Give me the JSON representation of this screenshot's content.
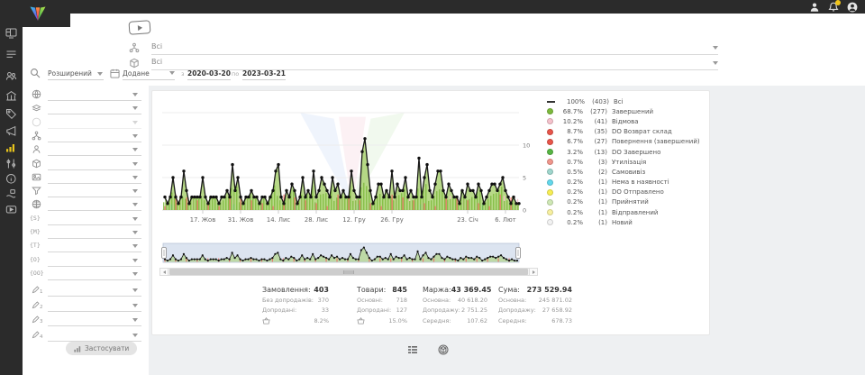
{
  "topbar": {
    "icons": [
      {
        "name": "user-icon"
      },
      {
        "name": "bell-icon",
        "badge": true
      },
      {
        "name": "avatar-icon"
      }
    ]
  },
  "sidebar": {
    "items": [
      {
        "icon": "dashboard-icon"
      },
      {
        "icon": "list-icon"
      },
      {
        "icon": "users-icon"
      },
      {
        "icon": "bank-icon"
      },
      {
        "icon": "tag-icon"
      },
      {
        "icon": "megaphone-icon"
      },
      {
        "icon": "bar-chart-icon",
        "active": true
      },
      {
        "icon": "sliders-icon"
      },
      {
        "icon": "info-icon"
      },
      {
        "icon": "hand-box-icon"
      },
      {
        "icon": "video-icon"
      }
    ]
  },
  "header": {
    "filter_rows": [
      {
        "icon": "sitemap-icon",
        "value": "Всі"
      },
      {
        "icon": "cube-icon",
        "value": "Всі"
      }
    ],
    "search_mode": "Розширений",
    "date_field": "Додане",
    "from_label": "з",
    "date_from": "2020-03-20",
    "to_label": "по",
    "date_to": "2023-03-21"
  },
  "filter_panel": {
    "rows": [
      {
        "icon": "globe-icon"
      },
      {
        "icon": "layers-icon"
      },
      {
        "icon": "status-circle-icon",
        "dim": true
      },
      {
        "icon": "sitemap-icon"
      },
      {
        "icon": "person-icon"
      },
      {
        "icon": "cube-icon"
      },
      {
        "icon": "image-icon"
      },
      {
        "icon": "funnel-icon"
      },
      {
        "icon": "globe-grid-icon"
      },
      {
        "token": "{S}"
      },
      {
        "token": "{M}"
      },
      {
        "token": "{T}"
      },
      {
        "token": "{O}"
      },
      {
        "token": "{OO}"
      }
    ],
    "pencil_rows": [
      {
        "icon": "pencil-icon",
        "number": "1"
      },
      {
        "icon": "pencil-icon",
        "number": "2"
      },
      {
        "icon": "pencil-icon",
        "number": "3"
      },
      {
        "icon": "pencil-icon",
        "number": "4"
      }
    ],
    "apply_label": "Застосувати"
  },
  "chart_data": {
    "type": "line",
    "title": "",
    "xlabel": "",
    "ylabel": "",
    "ylim": [
      0,
      18
    ],
    "y_ticks": [
      "0",
      "5",
      "10"
    ],
    "y_tick_values": [
      0,
      5,
      10
    ],
    "grid": true,
    "legend_position": "right",
    "x_tick_labels": [
      "17. Жов",
      "31. Жов",
      "14. Лис",
      "28. Лис",
      "12. Гру",
      "26. Гру",
      "23. Січ",
      "6. Лют"
    ],
    "x_tick_indices": [
      14,
      28,
      42,
      56,
      70,
      84,
      112,
      126
    ],
    "series_label": "Всі",
    "values": [
      2,
      1,
      2,
      5,
      2,
      1,
      2,
      6,
      3,
      1,
      2,
      2,
      2,
      2,
      5,
      2,
      1,
      2,
      2,
      2,
      1,
      2,
      2,
      3,
      2,
      7,
      3,
      5,
      2,
      1,
      2,
      2,
      3,
      2,
      2,
      1,
      2,
      2,
      1,
      2,
      3,
      6,
      7,
      2,
      1,
      3,
      2,
      4,
      3,
      1,
      2,
      5,
      2,
      3,
      2,
      6,
      2,
      3,
      5,
      4,
      3,
      2,
      5,
      3,
      4,
      2,
      3,
      2,
      2,
      6,
      3,
      2,
      2,
      9,
      11,
      7,
      3,
      1,
      2,
      4,
      4,
      2,
      3,
      2,
      6,
      2,
      4,
      3,
      3,
      5,
      2,
      3,
      2,
      2,
      8,
      2,
      5,
      7,
      3,
      2,
      4,
      6,
      6,
      3,
      2,
      4,
      3,
      2,
      2,
      1,
      3,
      2,
      4,
      3,
      3,
      2,
      4,
      3,
      1,
      2,
      3,
      4,
      4,
      3,
      4,
      5,
      3,
      2,
      1,
      2,
      1,
      1
    ],
    "legend": [
      {
        "pct": "100%",
        "count": "(403)",
        "label": "Всі",
        "color": "#333333",
        "swatch": "line"
      },
      {
        "pct": "68.7%",
        "count": "(277)",
        "label": "Завершений",
        "color": "#7cb93c",
        "swatch": "dot"
      },
      {
        "pct": "10.2%",
        "count": "(41)",
        "label": "Відмова",
        "color": "#f5c2cc",
        "swatch": "dot"
      },
      {
        "pct": "8.7%",
        "count": "(35)",
        "label": "DO Возврат склад",
        "color": "#e8554a",
        "swatch": "dot"
      },
      {
        "pct": "6.7%",
        "count": "(27)",
        "label": "Повернення (завершений)",
        "color": "#e8554a",
        "swatch": "dot"
      },
      {
        "pct": "3.2%",
        "count": "(13)",
        "label": "DO Завершено",
        "color": "#57b544",
        "swatch": "dot"
      },
      {
        "pct": "0.7%",
        "count": "(3)",
        "label": "Утилізація",
        "color": "#f0968c",
        "swatch": "dot"
      },
      {
        "pct": "0.5%",
        "count": "(2)",
        "label": "Самовивіз",
        "color": "#9fd6cd",
        "swatch": "dot"
      },
      {
        "pct": "0.2%",
        "count": "(1)",
        "label": "Нема в наявності",
        "color": "#63d8ec",
        "swatch": "dot"
      },
      {
        "pct": "0.2%",
        "count": "(1)",
        "label": "DO Отправлено",
        "color": "#f7ee54",
        "swatch": "dot"
      },
      {
        "pct": "0.2%",
        "count": "(1)",
        "label": "Прийнятий",
        "color": "#cfe8b5",
        "swatch": "dot"
      },
      {
        "pct": "0.2%",
        "count": "(1)",
        "label": "Відправлений",
        "color": "#f7f0a0",
        "swatch": "dot"
      },
      {
        "pct": "0.2%",
        "count": "(1)",
        "label": "Новий",
        "color": "#f2f2f2",
        "swatch": "dot"
      }
    ]
  },
  "stats": {
    "columns": [
      {
        "title": "Замовлення:",
        "value": "403",
        "rows": [
          {
            "label": "Без допродажів:",
            "value": "370"
          },
          {
            "label": "Допродані:",
            "value": "33"
          },
          {
            "icon": "basket-icon",
            "label": "",
            "value": "8.2%"
          }
        ]
      },
      {
        "title": "Товари:",
        "value": "845",
        "rows": [
          {
            "label": "Основні:",
            "value": "718"
          },
          {
            "label": "Допродані:",
            "value": "127"
          },
          {
            "icon": "basket-icon",
            "label": "",
            "value": "15.0%"
          }
        ]
      },
      {
        "title": "Маржа:",
        "value": "43 369.45",
        "rows": [
          {
            "label": "Основна:",
            "value": "40 618.20"
          },
          {
            "label": "Допродажу:",
            "value": "2 751.25"
          },
          {
            "label": "Середня:",
            "value": "107.62"
          }
        ]
      },
      {
        "title": "Сума:",
        "value": "273 529.94",
        "rows": [
          {
            "label": "Основна:",
            "value": "245 871.02"
          },
          {
            "label": "Допродажу:",
            "value": "27 658.92"
          },
          {
            "label": "Середня:",
            "value": "678.73"
          }
        ]
      }
    ]
  },
  "colors": {
    "bar_green": "#7cb93c",
    "bar_red": "#ed6a5f",
    "bar_pink": "#f5c2cc",
    "bar_cyan": "#63d8ec",
    "bar_yellow": "#f7ee54",
    "area_green": "#a6d06a",
    "line_black": "#1a1a1a",
    "sidebar_active": "#e8c41c",
    "notification_badge": "#f0c419",
    "navigator_bg": "#dce4f0"
  }
}
